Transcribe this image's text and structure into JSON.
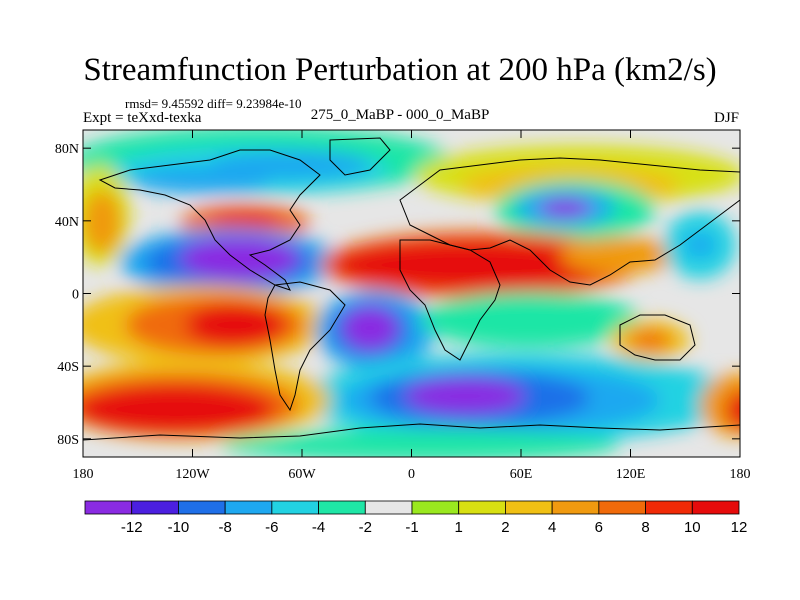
{
  "map": {
    "title": "Streamfunction Perturbation at 200 hPa (km2/s)",
    "stats": "rmsd= 9.45592 diff= 9.23984e-10",
    "expt": "Expt = teXxd-texka",
    "center_label": "275_0_MaBP - 000_0_MaBP",
    "season": "DJF",
    "lon_ticks": [
      {
        "lon": -180,
        "label": "180"
      },
      {
        "lon": -120,
        "label": "120W"
      },
      {
        "lon": -60,
        "label": "60W"
      },
      {
        "lon": 0,
        "label": "0"
      },
      {
        "lon": 60,
        "label": "60E"
      },
      {
        "lon": 120,
        "label": "120E"
      },
      {
        "lon": 180,
        "label": "180"
      }
    ],
    "lat_ticks": [
      {
        "lat": 80,
        "label": "80N"
      },
      {
        "lat": 40,
        "label": "40N"
      },
      {
        "lat": 0,
        "label": "0"
      },
      {
        "lat": -40,
        "label": "40S"
      },
      {
        "lat": -80,
        "label": "80S"
      }
    ]
  },
  "colorbar": {
    "colors": [
      "#8a2be2",
      "#4b1fe0",
      "#1f6fe8",
      "#1ea8f0",
      "#22d2e2",
      "#1fe6a6",
      "#e6e6e6",
      "#9ae81f",
      "#d8e012",
      "#f0c014",
      "#f09a10",
      "#f06a0a",
      "#f02a06",
      "#e60b0b"
    ],
    "labels": [
      "-12",
      "-10",
      "-8",
      "-6",
      "-4",
      "-2",
      "-1",
      "1",
      "2",
      "4",
      "6",
      "8",
      "10",
      "12"
    ]
  }
}
